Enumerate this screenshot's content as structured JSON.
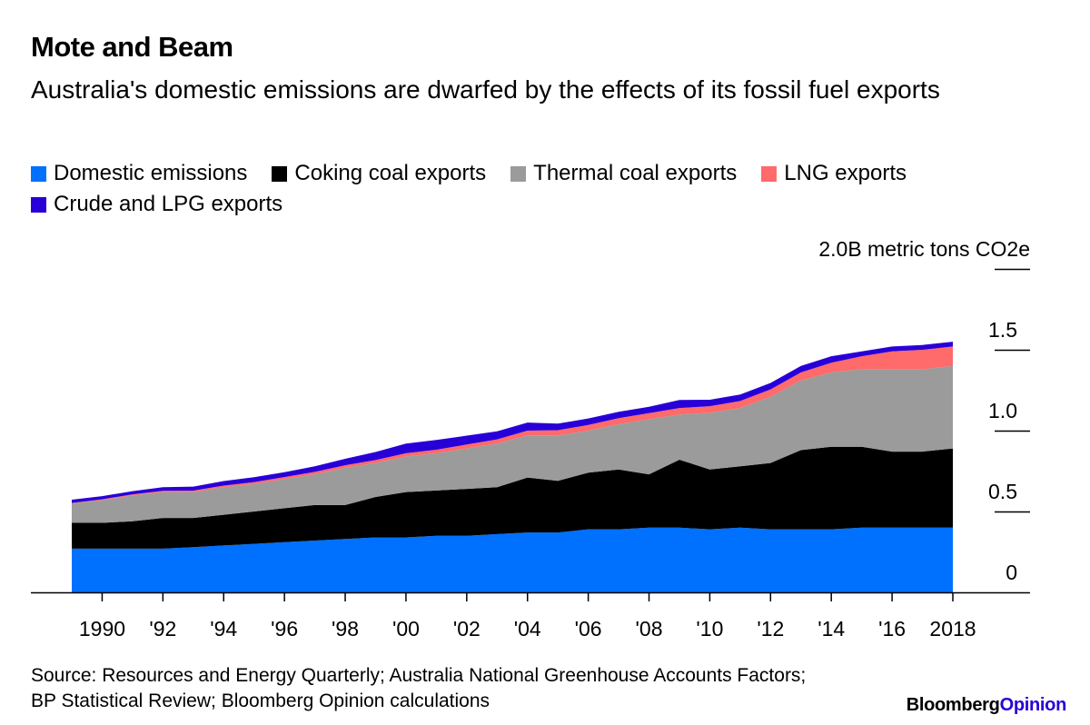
{
  "header": {
    "title": "Mote and Beam",
    "subtitle": "Australia's domestic emissions are dwarfed by the effects of its fossil fuel exports"
  },
  "legend": {
    "items": [
      {
        "label": "Domestic emissions",
        "color": "#0070ff"
      },
      {
        "label": "Coking coal exports",
        "color": "#000000"
      },
      {
        "label": "Thermal coal exports",
        "color": "#9b9b9b"
      },
      {
        "label": "LNG exports",
        "color": "#ff6a6a"
      },
      {
        "label": "Crude and LPG exports",
        "color": "#2800d7"
      }
    ]
  },
  "footer": {
    "source": "Source: Resources and Energy Quarterly; Australia National Greenhouse Accounts Factors; BP Statistical Review; Bloomberg Opinion calculations",
    "brand_part1": "Bloomberg",
    "brand_part2": "Opinion"
  },
  "chart_data": {
    "type": "area",
    "stacked": true,
    "title": "Mote and Beam",
    "subtitle": "Australia's domestic emissions are dwarfed by the effects of its fossil fuel exports",
    "ylabel": "2.0B metric tons CO2e",
    "ylim": [
      0,
      2.0
    ],
    "yticks": [
      0,
      0.5,
      1.0,
      1.5,
      2.0
    ],
    "ytick_labels": [
      "0",
      "0.5",
      "1.0",
      "1.5",
      "2.0B metric tons CO2e"
    ],
    "xticks": [
      1990,
      1992,
      1994,
      1996,
      1998,
      2000,
      2002,
      2004,
      2006,
      2008,
      2010,
      2012,
      2014,
      2016,
      2018
    ],
    "xtick_labels": [
      "1990",
      "'92",
      "'94",
      "'96",
      "'98",
      "'00",
      "'02",
      "'04",
      "'06",
      "'08",
      "'10",
      "'12",
      "'14",
      "'16",
      "2018"
    ],
    "x": [
      1989,
      1990,
      1991,
      1992,
      1993,
      1994,
      1995,
      1996,
      1997,
      1998,
      1999,
      2000,
      2001,
      2002,
      2003,
      2004,
      2005,
      2006,
      2007,
      2008,
      2009,
      2010,
      2011,
      2012,
      2013,
      2014,
      2015,
      2016,
      2017,
      2018
    ],
    "series": [
      {
        "name": "Domestic emissions",
        "color": "#0070ff",
        "values": [
          0.27,
          0.27,
          0.27,
          0.27,
          0.28,
          0.29,
          0.3,
          0.31,
          0.32,
          0.33,
          0.34,
          0.34,
          0.35,
          0.35,
          0.36,
          0.37,
          0.37,
          0.39,
          0.39,
          0.4,
          0.4,
          0.39,
          0.4,
          0.39,
          0.39,
          0.39,
          0.4,
          0.4,
          0.4,
          0.4
        ]
      },
      {
        "name": "Coking coal exports",
        "color": "#000000",
        "values": [
          0.16,
          0.16,
          0.17,
          0.19,
          0.18,
          0.19,
          0.2,
          0.21,
          0.22,
          0.21,
          0.25,
          0.28,
          0.28,
          0.29,
          0.29,
          0.34,
          0.32,
          0.35,
          0.37,
          0.33,
          0.42,
          0.37,
          0.38,
          0.41,
          0.49,
          0.51,
          0.5,
          0.47,
          0.47,
          0.49
        ]
      },
      {
        "name": "Thermal coal exports",
        "color": "#9b9b9b",
        "values": [
          0.12,
          0.14,
          0.16,
          0.16,
          0.16,
          0.17,
          0.17,
          0.18,
          0.19,
          0.23,
          0.21,
          0.22,
          0.23,
          0.25,
          0.27,
          0.26,
          0.28,
          0.26,
          0.28,
          0.34,
          0.28,
          0.35,
          0.36,
          0.41,
          0.43,
          0.46,
          0.48,
          0.51,
          0.51,
          0.51
        ]
      },
      {
        "name": "LNG exports",
        "color": "#ff6a6a",
        "values": [
          0.003,
          0.005,
          0.006,
          0.008,
          0.009,
          0.01,
          0.012,
          0.013,
          0.015,
          0.016,
          0.018,
          0.02,
          0.022,
          0.024,
          0.026,
          0.03,
          0.033,
          0.035,
          0.037,
          0.038,
          0.04,
          0.041,
          0.043,
          0.045,
          0.05,
          0.06,
          0.08,
          0.11,
          0.12,
          0.12
        ]
      },
      {
        "name": "Crude and LPG exports",
        "color": "#2800d7",
        "values": [
          0.02,
          0.02,
          0.02,
          0.022,
          0.025,
          0.028,
          0.03,
          0.03,
          0.035,
          0.04,
          0.05,
          0.06,
          0.06,
          0.055,
          0.05,
          0.05,
          0.04,
          0.04,
          0.04,
          0.04,
          0.05,
          0.04,
          0.04,
          0.04,
          0.04,
          0.04,
          0.03,
          0.03,
          0.03,
          0.03
        ]
      }
    ]
  }
}
